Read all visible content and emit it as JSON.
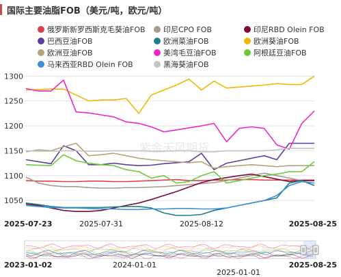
{
  "header": {
    "title": "国际主要油脂FOB（美元/吨，欧元/吨）",
    "accent_color": "#c0504d"
  },
  "watermark": "紫金天风期货",
  "navigator": {
    "labels": [
      "2023-01-02",
      "2024-01-01",
      "2025-01-01",
      "2025-08-25"
    ]
  },
  "chart_data": {
    "type": "line",
    "x": [
      "2025-07-23",
      "2025-07-24",
      "2025-07-25",
      "2025-07-28",
      "2025-07-29",
      "2025-07-30",
      "2025-07-31",
      "2025-08-01",
      "2025-08-04",
      "2025-08-05",
      "2025-08-06",
      "2025-08-07",
      "2025-08-08",
      "2025-08-11",
      "2025-08-12",
      "2025-08-13",
      "2025-08-14",
      "2025-08-15",
      "2025-08-18",
      "2025-08-19",
      "2025-08-20",
      "2025-08-21",
      "2025-08-22",
      "2025-08-25"
    ],
    "x_tick_labels": [
      "2025-07-23",
      "2025-07-31",
      "2025-08-12",
      "2025-08-25"
    ],
    "ylim": [
      1020,
      1310
    ],
    "yticks": [
      1050,
      1100,
      1150,
      1200,
      1250,
      1300
    ],
    "grid": "horizontal",
    "legend_position": "top",
    "series": [
      {
        "name": "俄罗斯新罗西斯克毛葵油FOB",
        "color": "#d9404a",
        "values": [
          1090,
          1089,
          1089,
          1088,
          1088,
          1089,
          1089,
          1088,
          1088,
          1089,
          1090,
          1091,
          1092,
          1090,
          1090,
          1091,
          1091,
          1092,
          1092,
          1091,
          1091,
          1091,
          1091,
          1091
        ]
      },
      {
        "name": "印尼CPO FOB",
        "color": "#a89b8c",
        "values": [
          1097,
          1085,
          1080,
          1078,
          1078,
          1076,
          1075,
          1075,
          1076,
          1076,
          1077,
          1078,
          1080,
          1082,
          1084,
          1086,
          1090,
          1095,
          1100,
          1105,
          1100,
          1095,
          1090,
          1090
        ]
      },
      {
        "name": "印尼RBD Olein FOB",
        "color": "#7b0a3c",
        "values": [
          1043,
          1040,
          1035,
          1030,
          1028,
          1028,
          1030,
          1035,
          1040,
          1045,
          1052,
          1060,
          1068,
          1077,
          1086,
          1092,
          1096,
          1100,
          1103,
          1098,
          1093,
          1088,
          1090,
          1090
        ]
      },
      {
        "name": "巴西豆油FOB",
        "color": "#5b3f9a",
        "values": [
          1132,
          1128,
          1124,
          1160,
          1150,
          1122,
          1122,
          1125,
          1122,
          1120,
          1121,
          1124,
          1126,
          1128,
          1145,
          1112,
          1125,
          1130,
          1135,
          1140,
          1132,
          1165,
          1165,
          1165
        ]
      },
      {
        "name": "欧洲菜油FOB",
        "color": "#1f7f8c",
        "values": [
          1045,
          1042,
          1038,
          1036,
          1036,
          1036,
          1036,
          1037,
          1038,
          1038,
          1035,
          1025,
          1020,
          1020,
          1022,
          1030,
          1035,
          1040,
          1045,
          1050,
          1055,
          1085,
          1090,
          1080
        ]
      },
      {
        "name": "欧洲葵油FOB",
        "color": "#f2b705",
        "values": [
          1272,
          1273,
          1274,
          1274,
          1262,
          1250,
          1252,
          1252,
          1255,
          1225,
          1262,
          1272,
          1282,
          1294,
          1272,
          1290,
          1276,
          1278,
          1280,
          1282,
          1285,
          1283,
          1283,
          1300
        ]
      },
      {
        "name": "欧洲豆油FOB",
        "color": "#b5a477",
        "values": [
          1148,
          1152,
          1150,
          1158,
          1165,
          1140,
          1142,
          1145,
          1140,
          1135,
          1132,
          1130,
          1128,
          1126,
          1128,
          1115,
          1118,
          1120,
          1122,
          1120,
          1118,
          1120,
          1120,
          1120
        ]
      },
      {
        "name": "美湾毛豆油FOB",
        "color": "#ee27c3",
        "values": [
          1275,
          1270,
          1270,
          1292,
          1228,
          1226,
          1222,
          1218,
          1208,
          1205,
          1198,
          1188,
          1192,
          1196,
          1200,
          1205,
          1168,
          1195,
          1198,
          1195,
          1162,
          1153,
          1205,
          1230
        ]
      },
      {
        "name": "阿根廷豆油FOB",
        "color": "#6ec93a",
        "values": [
          1122,
          1121,
          1120,
          1142,
          1130,
          1125,
          1122,
          1120,
          1112,
          1108,
          1095,
          1100,
          1085,
          1088,
          1100,
          1108,
          1085,
          1090,
          1095,
          1100,
          1103,
          1108,
          1108,
          1128
        ]
      },
      {
        "name": "马来西亚RBD Olein FOB",
        "color": "#3c8fdc",
        "values": [
          1040,
          1038,
          1036,
          1035,
          1035,
          1034,
          1033,
          1033,
          1032,
          1032,
          1033,
          1033,
          1034,
          1034,
          1033,
          1033,
          1035,
          1040,
          1045,
          1050,
          1060,
          1080,
          1088,
          1085
        ]
      },
      {
        "name": "黑海葵油FOB",
        "color": "#c4c4c4",
        "values": [
          1150,
          1149,
          1149,
          1150,
          1150,
          1149,
          1149,
          1150,
          1150,
          1150,
          1149,
          1149,
          1150,
          1150,
          1148,
          1148,
          1150,
          1150,
          1150,
          1150,
          1152,
          1155,
          1155,
          1155
        ]
      }
    ]
  }
}
